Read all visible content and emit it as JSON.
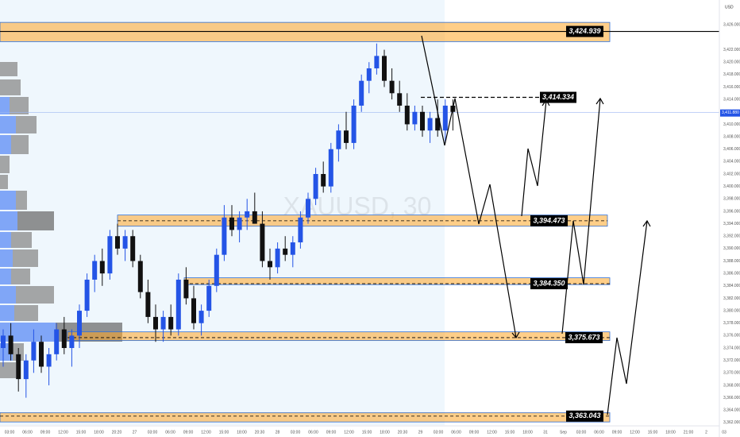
{
  "chart_data": {
    "type": "candlestick",
    "watermark": "XAUUSD, 30",
    "currency": "USD",
    "ylim": [
      3361.6,
      3430.0
    ],
    "yticks": [
      {
        "value": 3362,
        "label": "3,362.000"
      },
      {
        "value": 3364,
        "label": "3,364.000"
      },
      {
        "value": 3366,
        "label": "3,366.000"
      },
      {
        "value": 3368,
        "label": "3,368.000"
      },
      {
        "value": 3370,
        "label": "3,370.000"
      },
      {
        "value": 3372,
        "label": "3,372.000"
      },
      {
        "value": 3374,
        "label": "3,374.000"
      },
      {
        "value": 3376,
        "label": "3,376.000"
      },
      {
        "value": 3378,
        "label": "3,378.000"
      },
      {
        "value": 3380,
        "label": "3,380.000"
      },
      {
        "value": 3382,
        "label": "3,382.000"
      },
      {
        "value": 3384,
        "label": "3,384.000"
      },
      {
        "value": 3386,
        "label": "3,386.000"
      },
      {
        "value": 3388,
        "label": "3,388.000"
      },
      {
        "value": 3390,
        "label": "3,390.000"
      },
      {
        "value": 3392,
        "label": "3,392.000"
      },
      {
        "value": 3394,
        "label": "3,394.000"
      },
      {
        "value": 3396,
        "label": "3,396.000"
      },
      {
        "value": 3398,
        "label": "3,398.000"
      },
      {
        "value": 3400,
        "label": "3,400.000"
      },
      {
        "value": 3402,
        "label": "3,402.000"
      },
      {
        "value": 3404,
        "label": "3,404.000"
      },
      {
        "value": 3406,
        "label": "3,406.000"
      },
      {
        "value": 3408,
        "label": "3,408.000"
      },
      {
        "value": 3410,
        "label": "3,410.000"
      },
      {
        "value": 3412,
        "label": "3,412.000"
      },
      {
        "value": 3414,
        "label": "3,414.000"
      },
      {
        "value": 3416,
        "label": "3,416.000"
      },
      {
        "value": 3418,
        "label": "3,418.000"
      },
      {
        "value": 3420,
        "label": "3,420.000"
      },
      {
        "value": 3422,
        "label": "3,422.000"
      },
      {
        "value": 3426,
        "label": "3,426.000"
      }
    ],
    "x_labels": [
      "03:00",
      "06:00",
      "09:00",
      "12:00",
      "15:00",
      "18:00",
      "20:20",
      "27",
      "03:00",
      "06:00",
      "09:00",
      "12:00",
      "15:00",
      "18:00",
      "20:30",
      "28",
      "03:00",
      "06:00",
      "09:00",
      "12:00",
      "15:00",
      "18:00",
      "20:30",
      "29",
      "03:00",
      "06:00",
      "09:00",
      "12:00",
      "15:00",
      "18:00",
      "31",
      "Sep",
      "03:00",
      "06:00",
      "09:00",
      "12:00",
      "15:00",
      "18:00",
      "21:00",
      "2",
      "03"
    ],
    "up_color": "#2454e6",
    "down_color": "#111111",
    "open": [
      3374,
      3376,
      3373,
      3369,
      3372,
      3375,
      3371,
      3373,
      3377,
      3374,
      3376,
      3380,
      3385,
      3388,
      3386,
      3392,
      3390,
      3392,
      3388,
      3383,
      3379,
      3377,
      3379,
      3377,
      3385,
      3382,
      3378,
      3380,
      3384,
      3389,
      3395,
      3393,
      3395,
      3396,
      3394,
      3388,
      3387,
      3390,
      3389,
      3391,
      3395,
      3398,
      3402,
      3400,
      3406,
      3409,
      3407,
      3413,
      3417,
      3419,
      3421,
      3417,
      3415,
      3413,
      3410,
      3412,
      3409,
      3411,
      3409,
      3413
    ],
    "high": [
      3377,
      3378,
      3374,
      3373,
      3377,
      3376,
      3374,
      3378,
      3379,
      3377,
      3381,
      3386,
      3389,
      3390,
      3393,
      3394,
      3393,
      3393,
      3389,
      3385,
      3381,
      3380,
      3381,
      3386,
      3387,
      3384,
      3381,
      3385,
      3390,
      3397,
      3397,
      3396,
      3398,
      3399,
      3396,
      3390,
      3391,
      3392,
      3392,
      3396,
      3399,
      3403,
      3404,
      3407,
      3410,
      3412,
      3414,
      3418,
      3420,
      3423,
      3422,
      3419,
      3417,
      3415,
      3413,
      3413,
      3412,
      3414,
      3414,
      3414
    ],
    "low": [
      3371,
      3372,
      3367,
      3366,
      3370,
      3370,
      3368,
      3372,
      3373,
      3371,
      3374,
      3379,
      3383,
      3384,
      3385,
      3389,
      3388,
      3387,
      3382,
      3378,
      3375,
      3375,
      3376,
      3376,
      3381,
      3377,
      3376,
      3379,
      3383,
      3388,
      3392,
      3391,
      3393,
      3394,
      3387,
      3385,
      3386,
      3388,
      3387,
      3390,
      3394,
      3397,
      3399,
      3399,
      3404,
      3406,
      3406,
      3412,
      3415,
      3418,
      3416,
      3414,
      3412,
      3409,
      3409,
      3408,
      3407,
      3408,
      3407,
      3409
    ],
    "close": [
      3376,
      3373,
      3369,
      3372,
      3375,
      3371,
      3373,
      3377,
      3374,
      3376,
      3380,
      3385,
      3388,
      3386,
      3392,
      3390,
      3392,
      3388,
      3383,
      3379,
      3377,
      3379,
      3377,
      3385,
      3382,
      3378,
      3380,
      3384,
      3389,
      3395,
      3393,
      3395,
      3396,
      3394,
      3388,
      3387,
      3390,
      3389,
      3391,
      3395,
      3398,
      3402,
      3400,
      3406,
      3409,
      3407,
      3413,
      3417,
      3419,
      3421,
      3417,
      3415,
      3413,
      3410,
      3412,
      3409,
      3411,
      3409,
      3413,
      3412
    ],
    "zones": [
      {
        "label": "3,424.939",
        "price": 3424.939,
        "high": 3426.4,
        "low": 3423.3
      },
      {
        "label": "3,394.473",
        "price": 3394.473,
        "high": 3395.4,
        "low": 3393.6
      },
      {
        "label": "3,384.350",
        "price": 3384.35,
        "high": 3385.3,
        "low": 3384.2
      },
      {
        "label": "3,375.673",
        "price": 3375.673,
        "high": 3376.6,
        "low": 3375.2
      },
      {
        "label": "3,363.043",
        "price": 3363.043,
        "high": 3363.6,
        "low": 3362.1
      }
    ],
    "target": {
      "label": "3,414.334",
      "price": 3414.334
    },
    "current": {
      "label": "3,411.880",
      "price": 3411.88
    }
  }
}
